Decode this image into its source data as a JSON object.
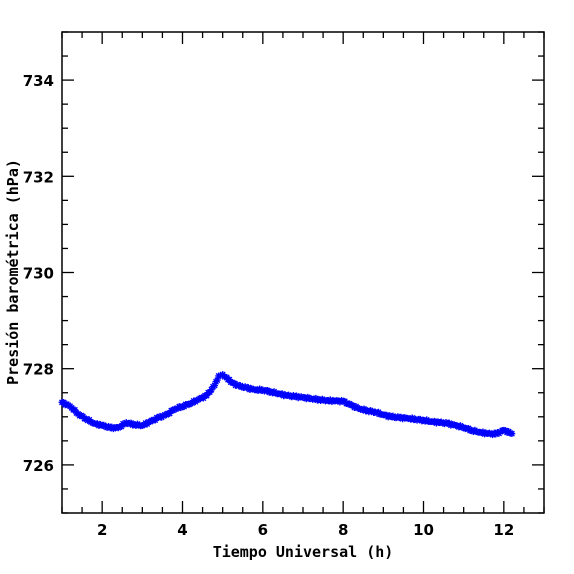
{
  "chart_data": {
    "type": "scatter",
    "title": "",
    "xlabel": "Tiempo Universal (h)",
    "ylabel": "Presión barométrica (hPa)",
    "xlim": [
      1.0,
      13.0
    ],
    "ylim": [
      725.0,
      735.0
    ],
    "xticks": [
      2,
      4,
      6,
      8,
      10,
      12
    ],
    "yticks": [
      726,
      728,
      730,
      732,
      734
    ],
    "x_minor_step": 0.5,
    "y_minor_step": 0.5,
    "grid": false,
    "marker": "star",
    "series": [
      {
        "name": "",
        "color": "#0000ff",
        "points": [
          [
            1.0,
            727.3
          ],
          [
            1.2,
            727.22
          ],
          [
            1.4,
            727.06
          ],
          [
            1.6,
            726.96
          ],
          [
            1.8,
            726.86
          ],
          [
            2.0,
            726.82
          ],
          [
            2.2,
            726.77
          ],
          [
            2.4,
            726.77
          ],
          [
            2.6,
            726.88
          ],
          [
            2.8,
            726.84
          ],
          [
            3.0,
            726.82
          ],
          [
            3.2,
            726.9
          ],
          [
            3.4,
            726.98
          ],
          [
            3.6,
            727.04
          ],
          [
            3.8,
            727.16
          ],
          [
            4.0,
            727.22
          ],
          [
            4.2,
            727.28
          ],
          [
            4.4,
            727.36
          ],
          [
            4.6,
            727.44
          ],
          [
            4.8,
            727.65
          ],
          [
            4.9,
            727.85
          ],
          [
            5.0,
            727.88
          ],
          [
            5.1,
            727.82
          ],
          [
            5.2,
            727.72
          ],
          [
            5.4,
            727.64
          ],
          [
            5.6,
            727.6
          ],
          [
            5.8,
            727.56
          ],
          [
            6.0,
            727.56
          ],
          [
            6.2,
            727.52
          ],
          [
            6.4,
            727.48
          ],
          [
            6.6,
            727.44
          ],
          [
            6.8,
            727.42
          ],
          [
            7.0,
            727.4
          ],
          [
            7.2,
            727.38
          ],
          [
            7.4,
            727.36
          ],
          [
            7.6,
            727.34
          ],
          [
            7.8,
            727.33
          ],
          [
            8.0,
            727.32
          ],
          [
            8.2,
            727.24
          ],
          [
            8.4,
            727.17
          ],
          [
            8.6,
            727.13
          ],
          [
            8.8,
            727.1
          ],
          [
            9.0,
            727.04
          ],
          [
            9.2,
            727.0
          ],
          [
            9.4,
            726.98
          ],
          [
            9.6,
            726.97
          ],
          [
            9.8,
            726.95
          ],
          [
            10.0,
            726.93
          ],
          [
            10.2,
            726.9
          ],
          [
            10.4,
            726.88
          ],
          [
            10.6,
            726.86
          ],
          [
            10.8,
            726.82
          ],
          [
            11.0,
            726.78
          ],
          [
            11.2,
            726.72
          ],
          [
            11.4,
            726.68
          ],
          [
            11.6,
            726.65
          ],
          [
            11.8,
            726.64
          ],
          [
            12.0,
            726.72
          ],
          [
            12.2,
            726.65
          ]
        ]
      }
    ]
  }
}
